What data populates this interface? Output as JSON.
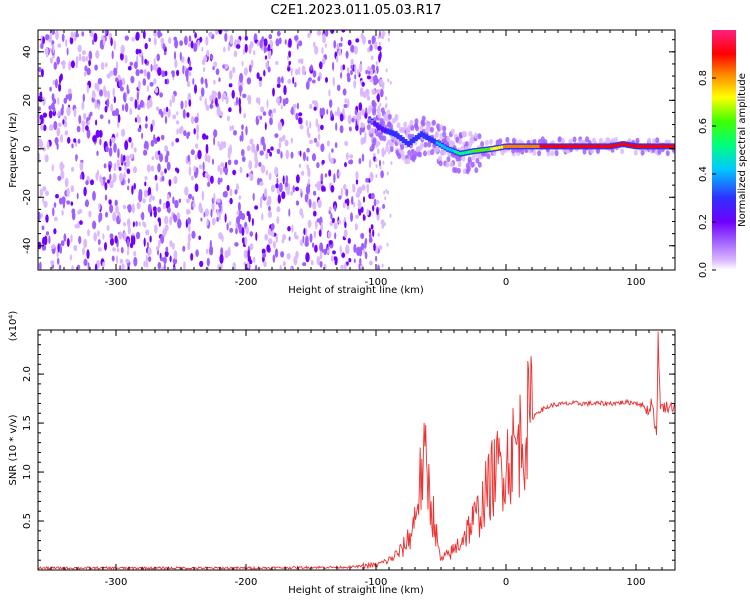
{
  "figure_title": "C2E1.2023.011.05.03.R17",
  "colors": {
    "snr_line": "#ee3030",
    "axis": "#000000",
    "background": "#ffffff",
    "colormap": [
      "#ffffff",
      "#dcb8ff",
      "#a060ff",
      "#7000ff",
      "#3030ff",
      "#00c8ff",
      "#00ff80",
      "#40ff00",
      "#ffff00",
      "#ff8000",
      "#ff0000",
      "#ff2080"
    ]
  },
  "chart_data": [
    {
      "type": "heatmap",
      "title": "",
      "xlabel": "Height of straight line (km)",
      "ylabel": "Frequency (Hz)",
      "xlim": [
        -360,
        130
      ],
      "ylim": [
        -50,
        49
      ],
      "x_ticks": [
        -300,
        -200,
        -100,
        0,
        100
      ],
      "y_ticks": [
        -40,
        -20,
        0,
        20,
        40
      ],
      "grid": false,
      "colorbar": {
        "label": "Normalized spectral amplitude",
        "range": [
          0,
          1
        ],
        "ticks": [
          0.0,
          0.2,
          0.4,
          0.6,
          0.8
        ]
      },
      "features": {
        "noise_region_x": [
          -360,
          -100
        ],
        "signal_track": {
          "x": [
            -105,
            -95,
            -85,
            -75,
            -65,
            -55,
            -45,
            -35,
            -25,
            -10,
            0,
            20,
            40,
            60,
            80,
            90,
            100,
            115,
            130
          ],
          "freq_hz": [
            12,
            8,
            6,
            2,
            6,
            3,
            0,
            -2,
            -1,
            0,
            1,
            1,
            1,
            1,
            1,
            2,
            1,
            1,
            1
          ],
          "amplitude": [
            0.2,
            0.3,
            0.35,
            0.4,
            0.35,
            0.4,
            0.45,
            0.55,
            0.6,
            0.7,
            0.8,
            0.85,
            0.9,
            0.95,
            0.95,
            0.9,
            0.95,
            0.9,
            0.9
          ]
        }
      }
    },
    {
      "type": "line",
      "title": "",
      "xlabel": "Height of straight line (km)",
      "ylabel": "SNR (10 * v/v)",
      "y_multiplier_label": "(x10⁴)",
      "xlim": [
        -360,
        130
      ],
      "ylim": [
        0,
        2.45
      ],
      "x_ticks": [
        -300,
        -200,
        -100,
        0,
        100
      ],
      "y_ticks": [
        0.5,
        1.0,
        1.5,
        2.0
      ],
      "grid": false,
      "series": [
        {
          "x": [
            -360,
            -200,
            -120,
            -100,
            -90,
            -80,
            -72,
            -66,
            -62,
            -58,
            -55,
            -52,
            -50,
            -45,
            -40,
            -35,
            -30,
            -25,
            -20,
            -15,
            -10,
            -5,
            0,
            5,
            10,
            15,
            20,
            25,
            30,
            35,
            40,
            50,
            60,
            70,
            80,
            90,
            100,
            105,
            108,
            110,
            112,
            114,
            115,
            116,
            117,
            118,
            119,
            120,
            125,
            130
          ],
          "y": [
            0.02,
            0.02,
            0.03,
            0.05,
            0.1,
            0.2,
            0.4,
            0.9,
            1.1,
            0.7,
            0.5,
            0.2,
            0.1,
            0.15,
            0.2,
            0.3,
            0.4,
            0.5,
            0.6,
            0.8,
            0.95,
            1.05,
            1.1,
            1.2,
            1.3,
            1.45,
            1.55,
            1.62,
            1.65,
            1.68,
            1.69,
            1.7,
            1.7,
            1.7,
            1.7,
            1.71,
            1.71,
            1.68,
            1.65,
            1.6,
            1.75,
            1.55,
            1.45,
            1.3,
            2.45,
            1.9,
            1.65,
            1.66,
            1.67,
            1.67
          ]
        }
      ]
    }
  ]
}
